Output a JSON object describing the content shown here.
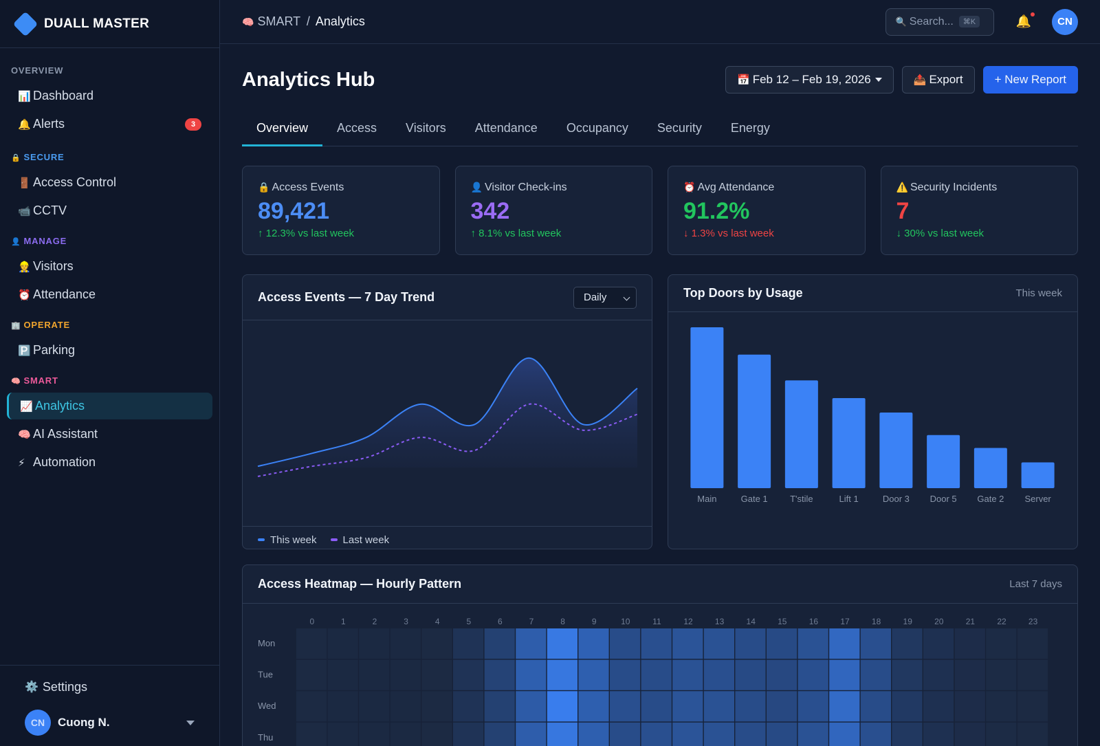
{
  "brand": {
    "name": "DUALL MASTER"
  },
  "sidebar": {
    "sections": [
      {
        "title": "OVERVIEW",
        "icon": "",
        "color": "#8a96aa",
        "items": [
          {
            "icon": "📊",
            "label": "Dashboard",
            "name": "dashboard"
          },
          {
            "icon": "🔔",
            "label": "Alerts",
            "name": "alerts",
            "badge": "3"
          }
        ]
      },
      {
        "title": "SECURE",
        "icon": "🔒",
        "color": "#4a9bf0",
        "items": [
          {
            "icon": "🚪",
            "label": "Access Control",
            "name": "access-control"
          },
          {
            "icon": "📹",
            "label": "CCTV",
            "name": "cctv"
          }
        ]
      },
      {
        "title": "MANAGE",
        "icon": "👤",
        "color": "#8b6cf0",
        "items": [
          {
            "icon": "👷",
            "label": "Visitors",
            "name": "visitors"
          },
          {
            "icon": "⏰",
            "label": "Attendance",
            "name": "attendance"
          }
        ]
      },
      {
        "title": "OPERATE",
        "icon": "🏢",
        "color": "#f0a52e",
        "items": [
          {
            "icon": "🅿️",
            "label": "Parking",
            "name": "parking"
          }
        ]
      },
      {
        "title": "SMART",
        "icon": "🧠",
        "color": "#ec5a9a",
        "items": [
          {
            "icon": "📈",
            "label": "Analytics",
            "name": "analytics",
            "active": true
          },
          {
            "icon": "🧠",
            "label": "AI Assistant",
            "name": "ai-assistant"
          },
          {
            "icon": "⚡",
            "label": "Automation",
            "name": "automation"
          }
        ]
      }
    ],
    "settings_label": "Settings",
    "settings_icon": "⚙️",
    "user": {
      "initials": "CN",
      "name": "Cuong N."
    }
  },
  "topbar": {
    "crumb_icon": "🧠",
    "crumb_parent": "SMART",
    "crumb_sep": "/",
    "crumb_current": "Analytics",
    "search_icon": "🔍",
    "search_placeholder": "Search...",
    "search_kbd": "⌘K",
    "bell_icon": "🔔",
    "avatar_initials": "CN"
  },
  "page": {
    "title": "Analytics Hub",
    "date_icon": "📅",
    "date_range": "Feb 12 – Feb 19, 2026",
    "export_icon": "📤",
    "export_label": "Export",
    "new_report_label": "+ New Report"
  },
  "tabs": [
    "Overview",
    "Access",
    "Visitors",
    "Attendance",
    "Occupancy",
    "Security",
    "Energy"
  ],
  "active_tab": 0,
  "kpis": [
    {
      "icon": "🔒",
      "label": "Access Events",
      "value": "89,421",
      "value_color": "#4c8df5",
      "delta": "↑ 12.3% vs last week",
      "delta_color": "#22c55e"
    },
    {
      "icon": "👤",
      "label": "Visitor Check-ins",
      "value": "342",
      "value_color": "#9b6cf5",
      "delta": "↑ 8.1% vs last week",
      "delta_color": "#22c55e"
    },
    {
      "icon": "⏰",
      "label": "Avg Attendance",
      "value": "91.2%",
      "value_color": "#22c55e",
      "delta": "↓ 1.3% vs last week",
      "delta_color": "#ef4444"
    },
    {
      "icon": "⚠️",
      "label": "Security Incidents",
      "value": "7",
      "value_color": "#ef4444",
      "delta": "↓ 30% vs last week",
      "delta_color": "#22c55e"
    }
  ],
  "trend_panel": {
    "title": "Access Events — 7 Day Trend",
    "select_value": "Daily",
    "legend": [
      {
        "label": "This week",
        "color": "#3b82f6"
      },
      {
        "label": "Last week",
        "color": "#8b5cf6"
      }
    ]
  },
  "doors_panel": {
    "title": "Top Doors by Usage",
    "meta": "This week"
  },
  "heatmap_panel": {
    "title": "Access Heatmap — Hourly Pattern",
    "meta": "Last 7 days"
  },
  "colors": {
    "accent": "#22b3d6",
    "primary": "#2563eb",
    "bar": "#3b82f6"
  },
  "chart_data": [
    {
      "type": "line",
      "series": [
        {
          "name": "This week",
          "values": [
            0.18,
            0.27,
            0.38,
            0.61,
            0.47,
            0.93,
            0.47,
            0.72
          ]
        },
        {
          "name": "Last week",
          "values": [
            0.11,
            0.18,
            0.24,
            0.38,
            0.29,
            0.61,
            0.43,
            0.54
          ]
        }
      ],
      "smooth": true,
      "axes_visible": false
    },
    {
      "type": "bar",
      "categories": [
        "Main",
        "Gate 1",
        "T'stile",
        "Lift 1",
        "Door 3",
        "Door 5",
        "Gate 2",
        "Server"
      ],
      "values": [
        100,
        83,
        67,
        56,
        47,
        33,
        25,
        16
      ],
      "ylim": [
        0,
        100
      ]
    },
    {
      "type": "heatmap",
      "rows": [
        "Mon",
        "Tue",
        "Wed",
        "Thu"
      ],
      "columns": [
        "0",
        "1",
        "2",
        "3",
        "4",
        "5",
        "6",
        "7",
        "8",
        "9",
        "10",
        "11",
        "12",
        "13",
        "14",
        "15",
        "16",
        "17",
        "18",
        "19",
        "20",
        "21",
        "22",
        "23"
      ],
      "values": [
        [
          0.05,
          0.04,
          0.04,
          0.04,
          0.05,
          0.15,
          0.3,
          0.6,
          0.9,
          0.65,
          0.42,
          0.45,
          0.5,
          0.48,
          0.42,
          0.4,
          0.48,
          0.72,
          0.45,
          0.2,
          0.12,
          0.08,
          0.06,
          0.05
        ],
        [
          0.05,
          0.04,
          0.04,
          0.04,
          0.05,
          0.15,
          0.32,
          0.62,
          0.88,
          0.62,
          0.42,
          0.42,
          0.48,
          0.45,
          0.4,
          0.38,
          0.45,
          0.7,
          0.42,
          0.2,
          0.12,
          0.08,
          0.06,
          0.05
        ],
        [
          0.05,
          0.04,
          0.04,
          0.04,
          0.05,
          0.15,
          0.3,
          0.58,
          0.95,
          0.62,
          0.45,
          0.42,
          0.5,
          0.48,
          0.42,
          0.38,
          0.45,
          0.75,
          0.42,
          0.22,
          0.12,
          0.08,
          0.06,
          0.05
        ],
        [
          0.05,
          0.04,
          0.04,
          0.04,
          0.05,
          0.15,
          0.3,
          0.6,
          0.88,
          0.62,
          0.42,
          0.45,
          0.5,
          0.48,
          0.42,
          0.4,
          0.48,
          0.7,
          0.45,
          0.2,
          0.12,
          0.08,
          0.06,
          0.05
        ]
      ]
    }
  ]
}
